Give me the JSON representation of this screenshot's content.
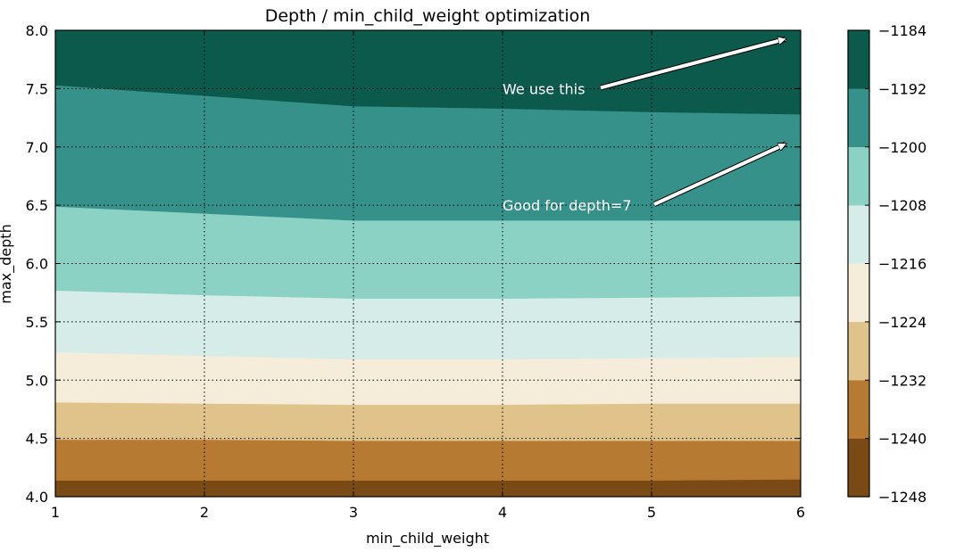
{
  "chart_data": {
    "type": "heatmap",
    "subtype": "filled-contour",
    "title": "Depth / min_child_weight optimization",
    "xlabel": "min_child_weight",
    "ylabel": "max_depth",
    "xlim": [
      1,
      6
    ],
    "ylim": [
      4.0,
      8.0
    ],
    "x_ticks": [
      "1",
      "2",
      "3",
      "4",
      "5",
      "6"
    ],
    "y_ticks": [
      "4.0",
      "4.5",
      "5.0",
      "5.5",
      "6.0",
      "6.5",
      "7.0",
      "7.5",
      "8.0"
    ],
    "grid": true,
    "x": [
      1,
      2,
      3,
      4,
      5,
      6
    ],
    "contour_levels": [
      -1248,
      -1240,
      -1232,
      -1224,
      -1216,
      -1208,
      -1200,
      -1192,
      -1184
    ],
    "colorbar_labels": [
      "−1184",
      "−1192",
      "−1200",
      "−1208",
      "−1216",
      "−1224",
      "−1232",
      "−1240",
      "−1248"
    ],
    "colormap": [
      "#7a4a16",
      "#b67a32",
      "#dfc38a",
      "#f5ecd9",
      "#d6ece8",
      "#8bd1c4",
      "#35918a",
      "#0b5a4c"
    ],
    "level_boundaries_max_depth": [
      [
        4.14,
        4.14,
        4.14,
        4.14,
        4.14,
        4.15
      ],
      [
        4.49,
        4.49,
        4.48,
        4.48,
        4.48,
        4.48
      ],
      [
        4.81,
        4.8,
        4.79,
        4.79,
        4.8,
        4.8
      ],
      [
        5.24,
        5.21,
        5.18,
        5.18,
        5.19,
        5.2
      ],
      [
        5.77,
        5.73,
        5.7,
        5.7,
        5.71,
        5.72
      ],
      [
        6.49,
        6.43,
        6.37,
        6.37,
        6.37,
        6.37
      ],
      [
        7.53,
        7.44,
        7.35,
        7.33,
        7.3,
        7.28
      ]
    ],
    "annotations": [
      {
        "text": "We use this",
        "xytext": [
          4.0,
          7.5
        ],
        "xy": [
          5.95,
          7.95
        ]
      },
      {
        "text": "Good for depth=7",
        "xytext": [
          4.0,
          6.5
        ],
        "xy": [
          5.95,
          7.05
        ]
      }
    ]
  }
}
